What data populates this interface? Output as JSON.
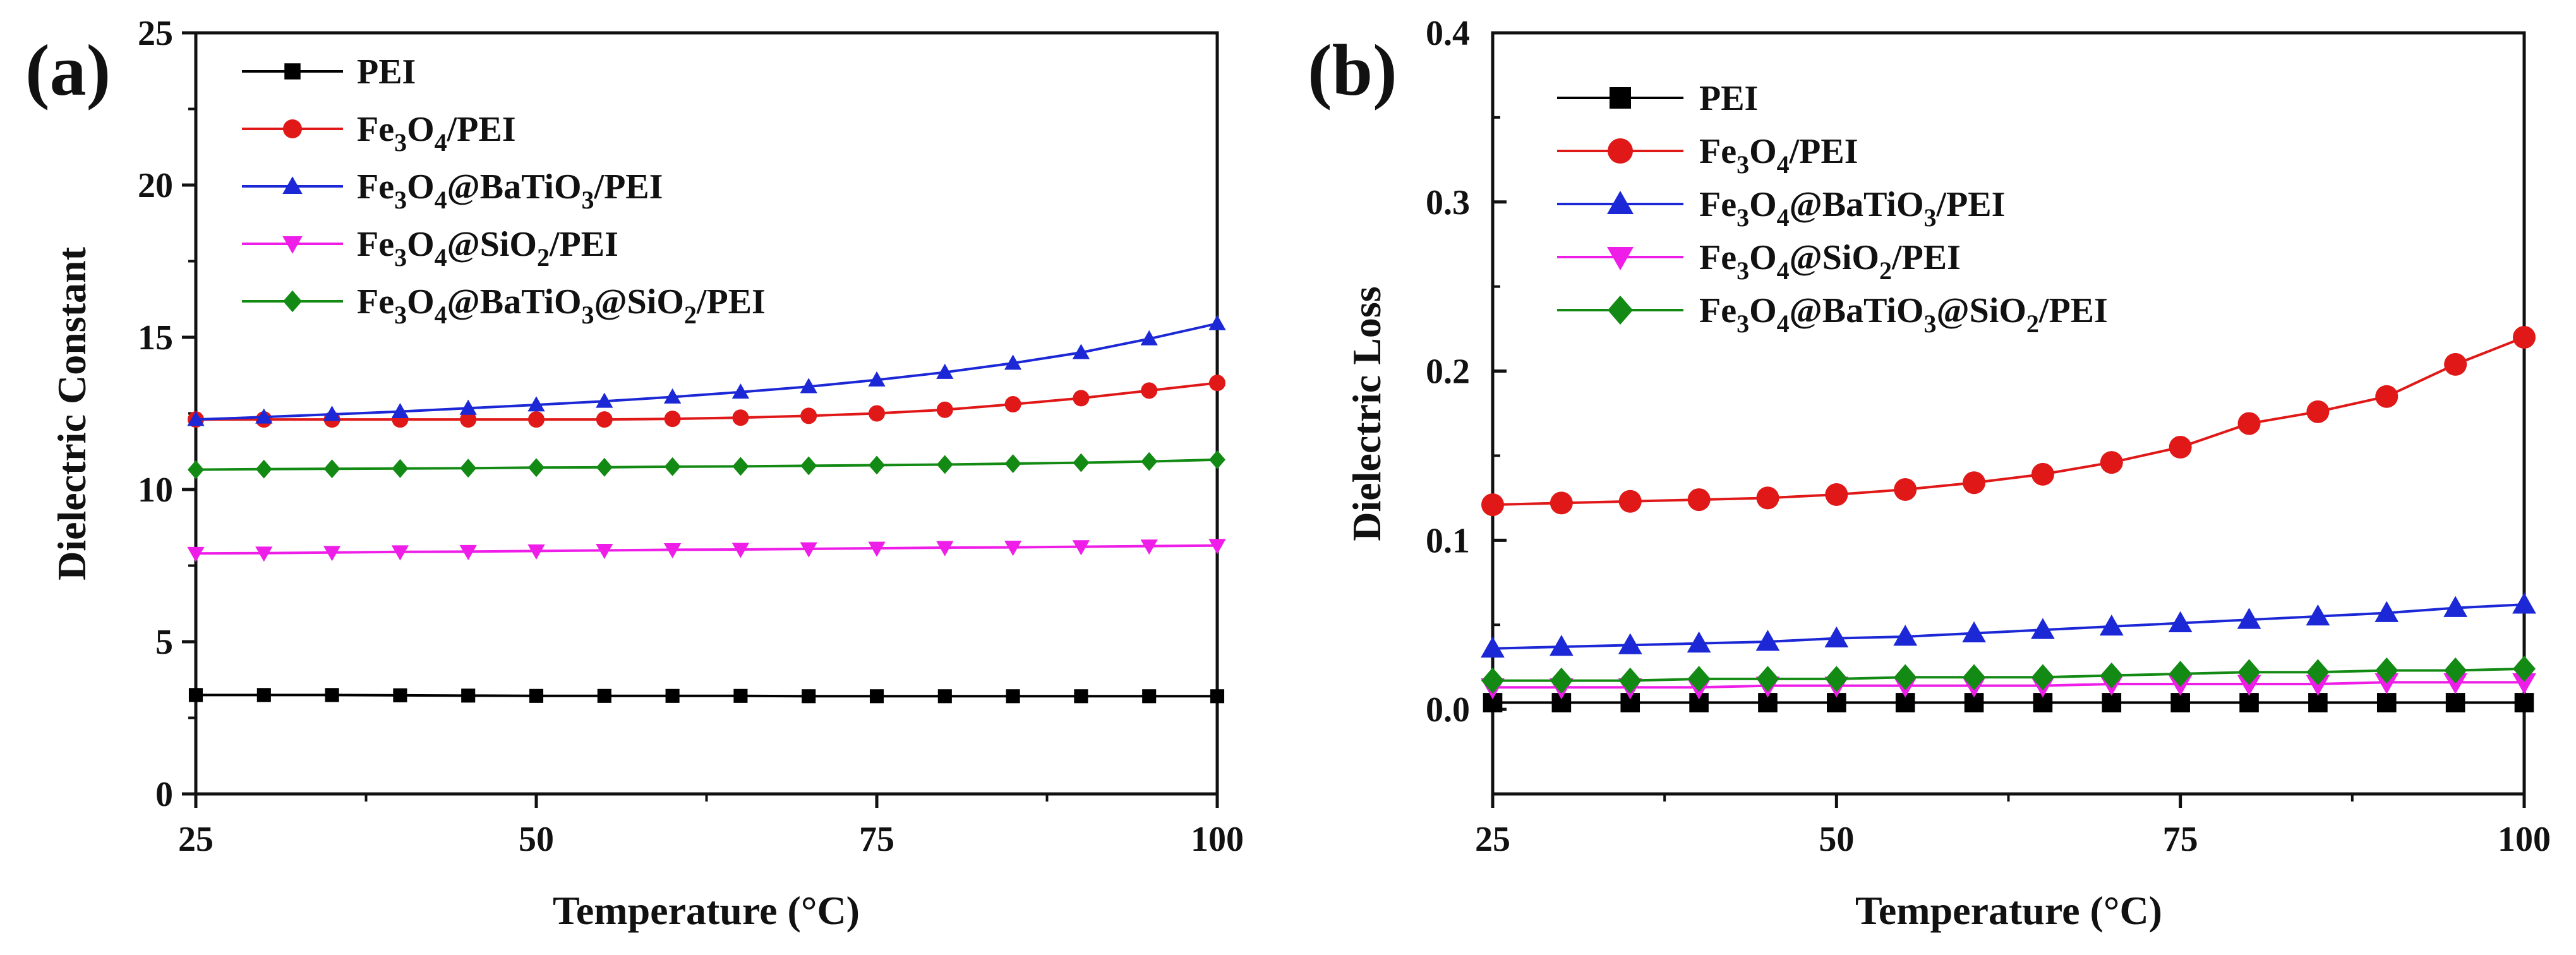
{
  "figure": {
    "colors": {
      "PEI": "#000000",
      "Fe3O4/PEI": "#e01818",
      "Fe3O4@BaTiO3/PEI": "#1c28d6",
      "Fe3O4@SiO2/PEI": "#ee1ee8",
      "Fe3O4@BaTiO3@SiO2/PEI": "#138a13"
    }
  },
  "chart_data": [
    {
      "panel_label": "(a)",
      "type": "line",
      "title": "",
      "xlabel": "Temperature (°C)",
      "ylabel": "Dielectric Constant",
      "xlim": [
        25,
        100
      ],
      "ylim": [
        0,
        25
      ],
      "xticks": [
        25,
        50,
        75,
        100
      ],
      "yticks": [
        0,
        5,
        10,
        15,
        20,
        25
      ],
      "xtick_labels": [
        "25",
        "50",
        "75",
        "100"
      ],
      "ytick_labels": [
        "0",
        "5",
        "10",
        "15",
        "20",
        "25"
      ],
      "grid": false,
      "legend_position": "top-left",
      "x": [
        25,
        30,
        35,
        40,
        45,
        50,
        55,
        60,
        65,
        70,
        75,
        80,
        85,
        90,
        95,
        100
      ],
      "series": [
        {
          "name": "PEI",
          "marker": "square",
          "values": [
            3.25,
            3.25,
            3.25,
            3.24,
            3.23,
            3.22,
            3.22,
            3.22,
            3.22,
            3.21,
            3.21,
            3.21,
            3.21,
            3.21,
            3.21,
            3.21
          ]
        },
        {
          "name": "Fe3O4/PEI",
          "marker": "circle",
          "values": [
            12.3,
            12.3,
            12.3,
            12.3,
            12.3,
            12.3,
            12.3,
            12.32,
            12.36,
            12.42,
            12.5,
            12.62,
            12.8,
            13.0,
            13.25,
            13.5
          ]
        },
        {
          "name": "Fe3O4@BaTiO3/PEI",
          "marker": "triangle-up",
          "values": [
            12.3,
            12.38,
            12.47,
            12.56,
            12.67,
            12.78,
            12.9,
            13.04,
            13.2,
            13.38,
            13.6,
            13.85,
            14.15,
            14.5,
            14.95,
            15.45
          ]
        },
        {
          "name": "Fe3O4@SiO2/PEI",
          "marker": "triangle-down",
          "values": [
            7.9,
            7.91,
            7.93,
            7.95,
            7.96,
            7.98,
            8.0,
            8.02,
            8.03,
            8.05,
            8.07,
            8.09,
            8.1,
            8.12,
            8.14,
            8.16
          ]
        },
        {
          "name": "Fe3O4@BaTiO3@SiO2/PEI",
          "marker": "diamond",
          "values": [
            10.65,
            10.67,
            10.68,
            10.69,
            10.7,
            10.72,
            10.73,
            10.75,
            10.76,
            10.78,
            10.8,
            10.82,
            10.85,
            10.88,
            10.92,
            10.98
          ]
        }
      ]
    },
    {
      "panel_label": "(b)",
      "type": "line",
      "title": "",
      "xlabel": "Temperature (°C)",
      "ylabel": "Dielectric Loss",
      "xlim": [
        25,
        100
      ],
      "ylim": [
        -0.05,
        0.4
      ],
      "xticks": [
        25,
        50,
        75,
        100
      ],
      "yticks": [
        0.0,
        0.1,
        0.2,
        0.3,
        0.4
      ],
      "xtick_labels": [
        "25",
        "50",
        "75",
        "100"
      ],
      "ytick_labels": [
        "0.0",
        "0.1",
        "0.2",
        "0.3",
        "0.4"
      ],
      "grid": false,
      "legend_position": "top-left",
      "x": [
        25,
        30,
        35,
        40,
        45,
        50,
        55,
        60,
        65,
        70,
        75,
        80,
        85,
        90,
        95,
        100
      ],
      "series": [
        {
          "name": "PEI",
          "marker": "square",
          "values": [
            0.004,
            0.004,
            0.004,
            0.004,
            0.004,
            0.004,
            0.004,
            0.004,
            0.004,
            0.004,
            0.004,
            0.004,
            0.004,
            0.004,
            0.004,
            0.004
          ]
        },
        {
          "name": "Fe3O4/PEI",
          "marker": "circle",
          "values": [
            0.121,
            0.122,
            0.123,
            0.124,
            0.125,
            0.127,
            0.13,
            0.134,
            0.139,
            0.146,
            0.155,
            0.169,
            0.176,
            0.185,
            0.204,
            0.22
          ]
        },
        {
          "name": "Fe3O4@BaTiO3/PEI",
          "marker": "triangle-up",
          "values": [
            0.036,
            0.037,
            0.038,
            0.039,
            0.04,
            0.042,
            0.043,
            0.045,
            0.047,
            0.049,
            0.051,
            0.053,
            0.055,
            0.057,
            0.06,
            0.062
          ]
        },
        {
          "name": "Fe3O4@SiO2/PEI",
          "marker": "triangle-down",
          "values": [
            0.013,
            0.013,
            0.013,
            0.013,
            0.014,
            0.014,
            0.014,
            0.014,
            0.014,
            0.015,
            0.015,
            0.015,
            0.015,
            0.016,
            0.016,
            0.016
          ]
        },
        {
          "name": "Fe3O4@BaTiO3@SiO2/PEI",
          "marker": "diamond",
          "values": [
            0.017,
            0.017,
            0.017,
            0.018,
            0.018,
            0.018,
            0.019,
            0.019,
            0.019,
            0.02,
            0.021,
            0.022,
            0.022,
            0.023,
            0.023,
            0.024
          ]
        }
      ]
    }
  ]
}
